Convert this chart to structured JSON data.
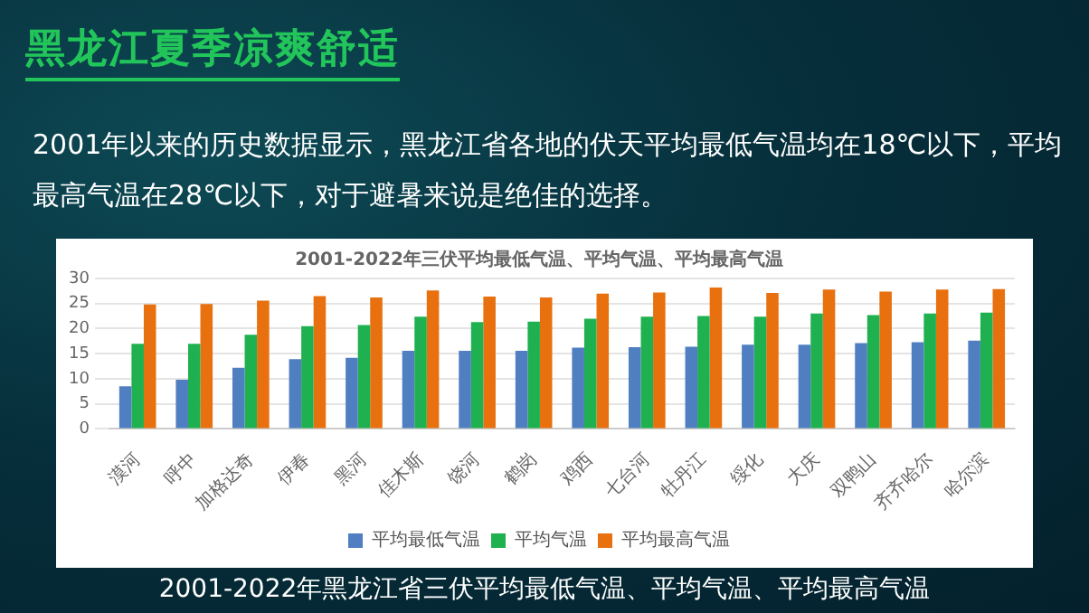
{
  "chart_data": {
    "type": "bar",
    "title": "黑龙江夏季凉爽舒适",
    "subtitle": "2001年以来的历史数据显示，黑龙江省各地的伏天平均最低气温均在18℃以下，平均最高气温在28℃以下，对于避暑来说是绝佳的选择。",
    "annotations": [
      "2001-2022年三伏平均最低气温、平均气温、平均最高气温",
      "2001-2022年黑龙江省三伏平均最低气温、平均气温、平均最高气温"
    ],
    "categories": [
      "漠河",
      "呼中",
      "加格达奇",
      "伊春",
      "黑河",
      "佳木斯",
      "饶河",
      "鹤岗",
      "鸡西",
      "七台河",
      "牡丹江",
      "绥化",
      "大庆",
      "双鸭山",
      "齐齐哈尔",
      "哈尔滨"
    ],
    "series": [
      {
        "name": "平均最低气温",
        "color": "#4f7fc0",
        "values": [
          8.5,
          9.8,
          12.2,
          13.9,
          14.2,
          15.6,
          15.6,
          15.6,
          16.2,
          16.3,
          16.4,
          16.8,
          16.8,
          17.1,
          17.3,
          17.6
        ]
      },
      {
        "name": "平均气温",
        "color": "#1fb04f",
        "values": [
          17.0,
          17.0,
          18.8,
          20.5,
          20.7,
          22.4,
          21.3,
          21.4,
          22.0,
          22.4,
          22.5,
          22.4,
          23.0,
          22.7,
          23.0,
          23.2
        ]
      },
      {
        "name": "平均最高气温",
        "color": "#e8700f",
        "values": [
          24.8,
          24.9,
          25.6,
          26.5,
          26.2,
          27.6,
          26.4,
          26.2,
          27.0,
          27.2,
          28.2,
          27.1,
          27.8,
          27.4,
          27.8,
          27.9
        ]
      }
    ],
    "ylim": [
      0,
      30
    ],
    "yticks": [
      0,
      5,
      10,
      15,
      20,
      25,
      30
    ],
    "grid": "y",
    "legend": "bottom"
  }
}
